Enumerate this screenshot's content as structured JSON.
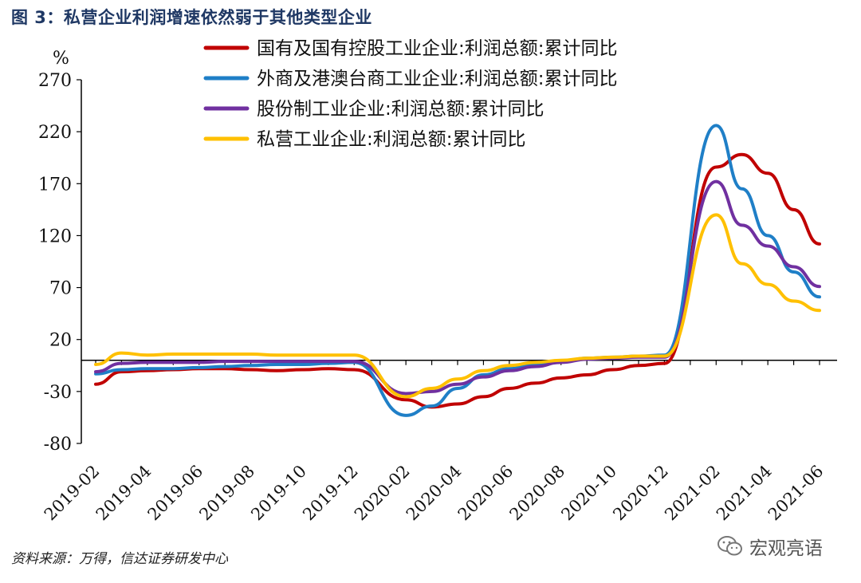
{
  "figure": {
    "title": "图 3：私营企业利润增速依然弱于其他类型企业",
    "source": "资料来源：万得，信达证券研发中心",
    "watermark": "宏观亮语",
    "watermark_icon": "wechat-icon"
  },
  "chart_data": {
    "type": "line",
    "ylabel": "%",
    "ylim": [
      -80,
      270
    ],
    "yticks": [
      -80,
      -30,
      20,
      70,
      120,
      170,
      220,
      270
    ],
    "x": [
      "2019-02",
      "2019-03",
      "2019-04",
      "2019-05",
      "2019-06",
      "2019-07",
      "2019-08",
      "2019-09",
      "2019-10",
      "2019-11",
      "2019-12",
      "2020-01",
      "2020-02",
      "2020-03",
      "2020-04",
      "2020-05",
      "2020-06",
      "2020-07",
      "2020-08",
      "2020-09",
      "2020-10",
      "2020-11",
      "2020-12",
      "2021-01",
      "2021-02",
      "2021-03",
      "2021-04",
      "2021-05",
      "2021-06"
    ],
    "xticks": [
      "2019-02",
      "2019-04",
      "2019-06",
      "2019-08",
      "2019-10",
      "2019-12",
      "2020-02",
      "2020-04",
      "2020-06",
      "2020-08",
      "2020-10",
      "2020-12",
      "2021-02",
      "2021-04",
      "2021-06"
    ],
    "legend_position": "top",
    "grid": false,
    "series": [
      {
        "name": "国有及国有控股工业企业:利润总额:累计同比",
        "color": "#c00000",
        "values": [
          -23,
          -11,
          -10,
          -9,
          -8,
          -8,
          -9,
          -10,
          -9,
          -8,
          -9,
          null,
          -38,
          -45,
          -42,
          -35,
          -27,
          -22,
          -17,
          -14,
          -9,
          -5,
          -3,
          null,
          186,
          198,
          180,
          145,
          112
        ]
      },
      {
        "name": "外商及港澳台商工业企业:利润总额:累计同比",
        "color": "#1f7fc7",
        "values": [
          -13,
          -9,
          -8,
          -8,
          -7,
          -6,
          -5,
          -4,
          -4,
          -3,
          -2,
          null,
          -53,
          -44,
          -27,
          -14,
          -8,
          -4,
          -1,
          2,
          3,
          4,
          5,
          null,
          226,
          165,
          120,
          85,
          61
        ]
      },
      {
        "name": "股份制工业企业:利润总额:累计同比",
        "color": "#7030a0",
        "values": [
          -11,
          -3,
          -2,
          -2,
          -2,
          -1,
          -1,
          -1,
          -1,
          -1,
          -1,
          null,
          -32,
          -30,
          -23,
          -16,
          -10,
          -6,
          -2,
          1,
          2,
          3,
          3,
          null,
          172,
          130,
          110,
          90,
          71
        ]
      },
      {
        "name": "私营工业企业:利润总额:累计同比",
        "color": "#ffc000",
        "values": [
          -4,
          7,
          5,
          6,
          6,
          6,
          6,
          5,
          5,
          5,
          5,
          null,
          -35,
          -27,
          -18,
          -10,
          -5,
          -2,
          0,
          2,
          3,
          4,
          4,
          null,
          140,
          93,
          73,
          57,
          48
        ]
      }
    ]
  }
}
